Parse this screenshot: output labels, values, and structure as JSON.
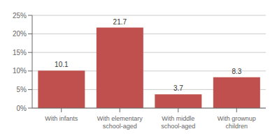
{
  "chart_data": {
    "type": "bar",
    "categories": [
      "With infants",
      "With elementary\nschool-aged",
      "With middle\nschool-aged",
      "With grownup\nchildren"
    ],
    "values": [
      10.1,
      21.7,
      3.7,
      8.3
    ],
    "color": "#c0504d",
    "ylim": [
      0,
      25
    ],
    "yticks": [
      {
        "value": 0,
        "label": "0%"
      },
      {
        "value": 5,
        "label": "5%"
      },
      {
        "value": 10,
        "label": "10%"
      },
      {
        "value": 15,
        "label": "15%"
      },
      {
        "value": 20,
        "label": "20%"
      },
      {
        "value": 25,
        "label": "25%"
      }
    ],
    "grid": true,
    "data_labels": true
  }
}
